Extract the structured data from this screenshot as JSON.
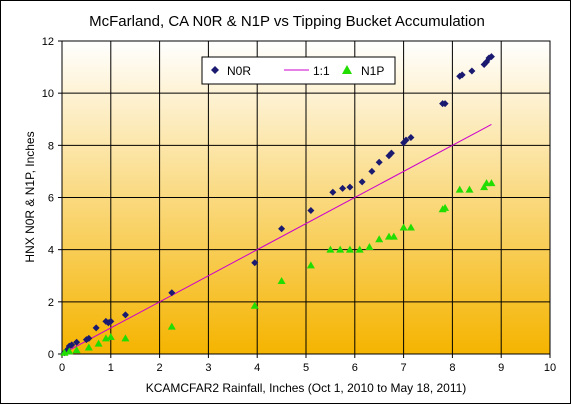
{
  "chart_data": {
    "type": "scatter",
    "title": "McFarland, CA N0R & N1P vs Tipping Bucket Accumulation",
    "xlabel": "KCAMCFAR2 Rainfall, Inches (Oct 1, 2010 to May 18, 2011)",
    "ylabel": "HNX N0R & N1P, Inches",
    "xlim": [
      0,
      10
    ],
    "ylim": [
      0,
      12
    ],
    "x_ticks": [
      "0",
      "1",
      "2",
      "3",
      "4",
      "5",
      "6",
      "7",
      "8",
      "9",
      "10"
    ],
    "y_ticks": [
      "0",
      "2",
      "4",
      "6",
      "8",
      "10",
      "12"
    ],
    "grid": true,
    "legend_placement": "top-center",
    "background_gradient": [
      "#ffffff",
      "#f5b400"
    ],
    "series": [
      {
        "name": "N0R",
        "marker": "diamond",
        "color": "#1a1a70",
        "points": [
          [
            0.05,
            0.05
          ],
          [
            0.1,
            0.15
          ],
          [
            0.15,
            0.3
          ],
          [
            0.2,
            0.35
          ],
          [
            0.3,
            0.45
          ],
          [
            0.5,
            0.55
          ],
          [
            0.55,
            0.6
          ],
          [
            0.7,
            1.0
          ],
          [
            0.9,
            1.25
          ],
          [
            0.95,
            1.2
          ],
          [
            1.0,
            1.25
          ],
          [
            1.3,
            1.5
          ],
          [
            2.25,
            2.35
          ],
          [
            3.95,
            3.5
          ],
          [
            4.5,
            4.8
          ],
          [
            5.1,
            5.5
          ],
          [
            5.55,
            6.2
          ],
          [
            5.75,
            6.35
          ],
          [
            5.9,
            6.4
          ],
          [
            6.15,
            6.6
          ],
          [
            6.35,
            7.0
          ],
          [
            6.5,
            7.35
          ],
          [
            6.7,
            7.6
          ],
          [
            6.75,
            7.7
          ],
          [
            7.0,
            8.1
          ],
          [
            7.05,
            8.2
          ],
          [
            7.15,
            8.3
          ],
          [
            7.8,
            9.6
          ],
          [
            7.85,
            9.6
          ],
          [
            8.15,
            10.65
          ],
          [
            8.2,
            10.7
          ],
          [
            8.4,
            10.85
          ],
          [
            8.65,
            11.1
          ],
          [
            8.7,
            11.2
          ],
          [
            8.75,
            11.35
          ],
          [
            8.8,
            11.4
          ]
        ]
      },
      {
        "name": "1:1",
        "line": true,
        "color": "#cc00cc",
        "points": [
          [
            0,
            0
          ],
          [
            8.8,
            8.8
          ]
        ]
      },
      {
        "name": "N1P",
        "marker": "triangle",
        "color": "#22dd00",
        "points": [
          [
            0.05,
            0.05
          ],
          [
            0.15,
            0.1
          ],
          [
            0.3,
            0.15
          ],
          [
            0.55,
            0.25
          ],
          [
            0.75,
            0.4
          ],
          [
            0.9,
            0.6
          ],
          [
            1.0,
            0.65
          ],
          [
            1.3,
            0.6
          ],
          [
            2.25,
            1.05
          ],
          [
            3.95,
            1.85
          ],
          [
            4.5,
            2.8
          ],
          [
            5.1,
            3.4
          ],
          [
            5.5,
            4.0
          ],
          [
            5.7,
            4.0
          ],
          [
            5.9,
            4.0
          ],
          [
            6.1,
            4.0
          ],
          [
            6.3,
            4.1
          ],
          [
            6.5,
            4.4
          ],
          [
            6.7,
            4.5
          ],
          [
            6.8,
            4.5
          ],
          [
            7.0,
            4.85
          ],
          [
            7.15,
            4.85
          ],
          [
            7.8,
            5.55
          ],
          [
            7.85,
            5.6
          ],
          [
            8.15,
            6.3
          ],
          [
            8.35,
            6.3
          ],
          [
            8.65,
            6.4
          ],
          [
            8.7,
            6.55
          ],
          [
            8.8,
            6.55
          ]
        ]
      }
    ]
  }
}
